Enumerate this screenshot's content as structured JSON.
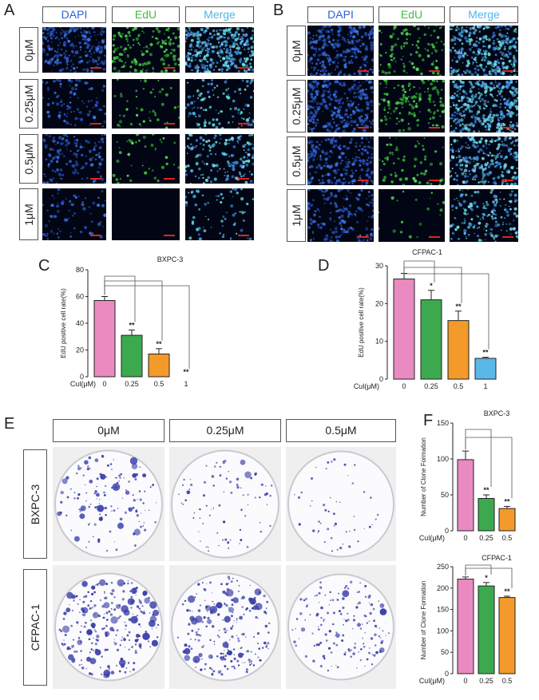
{
  "colors": {
    "dapi": "#2b62d9",
    "edu": "#3fbf3f",
    "merge": "#4fb6e3",
    "pink": "#e98bc1",
    "green": "#3da94e",
    "orange": "#f39a2a",
    "blue": "#5ab8e8",
    "crystal_violet": "#3a3fa8"
  },
  "panel_a": {
    "letter": "A",
    "headers": [
      "DAPI",
      "EdU",
      "Merge"
    ],
    "rows": [
      "0μM",
      "0.25μM",
      "0.5μM",
      "1μM"
    ]
  },
  "panel_b": {
    "letter": "B",
    "headers": [
      "DAPI",
      "EdU",
      "Merge"
    ],
    "rows": [
      "0μM",
      "0.25μM",
      "0.5μM",
      "1μM"
    ]
  },
  "panel_c": {
    "letter": "C"
  },
  "panel_d": {
    "letter": "D"
  },
  "panel_e": {
    "letter": "E",
    "columns": [
      "0μM",
      "0.25μM",
      "0.5μM"
    ],
    "rows": [
      "BXPC-3",
      "CFPAC-1"
    ]
  },
  "panel_f": {
    "letter": "F"
  },
  "chart_data": [
    {
      "id": "C",
      "type": "bar",
      "title": "BXPC-3",
      "ylabel": "EdU positive cell rate(%)",
      "xlabel": "Cul(μM)",
      "categories": [
        "0",
        "0.25",
        "0.5",
        "1"
      ],
      "values": [
        57,
        31,
        17,
        0
      ],
      "errors": [
        3,
        4,
        4,
        0
      ],
      "significance": [
        "",
        "**",
        "**",
        "**"
      ],
      "ylim": [
        0,
        80
      ],
      "yticks": [
        0,
        20,
        40,
        60,
        80
      ],
      "bar_colors": [
        "#e98bc1",
        "#3da94e",
        "#f39a2a",
        "#5ab8e8"
      ]
    },
    {
      "id": "D",
      "type": "bar",
      "title": "CFPAC-1",
      "ylabel": "EdU positive cell rate(%)",
      "xlabel": "Cul(μM)",
      "categories": [
        "0",
        "0.25",
        "0.5",
        "1"
      ],
      "values": [
        26.5,
        21,
        15.5,
        5.5
      ],
      "errors": [
        1.5,
        2.5,
        2.5,
        0.3
      ],
      "significance": [
        "",
        "*",
        "**",
        "**"
      ],
      "ylim": [
        0,
        30
      ],
      "yticks": [
        0,
        10,
        20,
        30
      ],
      "bar_colors": [
        "#e98bc1",
        "#3da94e",
        "#f39a2a",
        "#5ab8e8"
      ]
    },
    {
      "id": "F1",
      "type": "bar",
      "title": "BXPC-3",
      "ylabel": "Number of Clone Formation",
      "xlabel": "Cul(μM)",
      "categories": [
        "0",
        "0.25",
        "0.5"
      ],
      "values": [
        99,
        45,
        31
      ],
      "errors": [
        12,
        5,
        3
      ],
      "significance": [
        "",
        "**",
        "**"
      ],
      "ylim": [
        0,
        150
      ],
      "yticks": [
        0,
        50,
        100,
        150
      ],
      "bar_colors": [
        "#e98bc1",
        "#3da94e",
        "#f39a2a"
      ]
    },
    {
      "id": "F2",
      "type": "bar",
      "title": "CFPAC-1",
      "ylabel": "Number of Clone Formation",
      "xlabel": "Cul(μM)",
      "categories": [
        "0",
        "0.25",
        "0.5"
      ],
      "values": [
        221,
        205,
        178
      ],
      "errors": [
        5,
        8,
        3
      ],
      "significance": [
        "",
        "*",
        "**"
      ],
      "ylim": [
        0,
        250
      ],
      "yticks": [
        0,
        50,
        100,
        150,
        200,
        250
      ],
      "bar_colors": [
        "#e98bc1",
        "#3da94e",
        "#f39a2a"
      ]
    }
  ]
}
